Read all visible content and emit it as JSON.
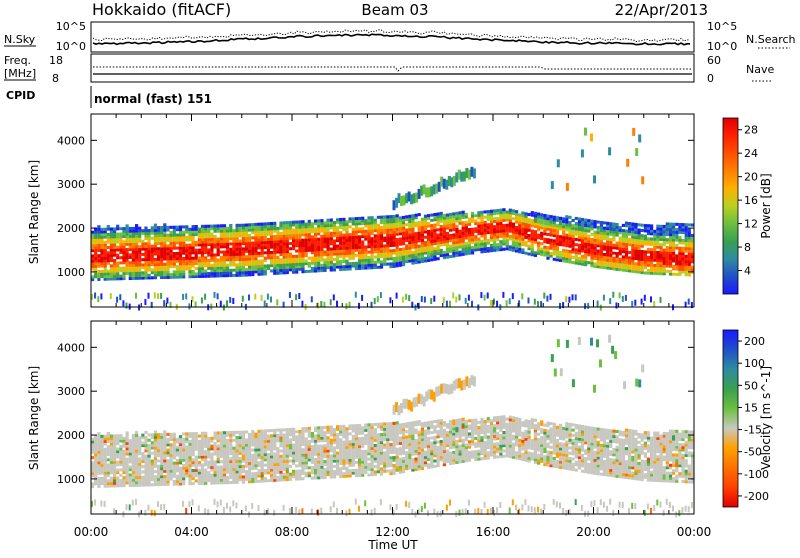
{
  "header": {
    "station": "Hokkaido (fitACF)",
    "beam": "Beam 03",
    "date": "22/Apr/2013"
  },
  "top_panels": {
    "nsky_label": "N.Sky",
    "nsearch_label": "N.Search",
    "noise_ticks": [
      "10^5",
      "10^0"
    ],
    "freq_label_line1": "Freq.",
    "freq_label_line2": "[MHz]",
    "freq_ticks": [
      "18",
      "8"
    ],
    "nave_label": "Nave",
    "nave_ticks": [
      "60",
      "0"
    ],
    "cpid_label": "CPID",
    "cpid_text": "normal (fast) 151"
  },
  "colors": {
    "power_scale": [
      "#1a1aff",
      "#2050c8",
      "#2e8ca0",
      "#3aa050",
      "#6cc040",
      "#b8d020",
      "#ffb000",
      "#ff8000",
      "#ff5000",
      "#ff2000",
      "#e00000"
    ],
    "velocity_scale": [
      "#1a1aff",
      "#2050c8",
      "#2e8ca0",
      "#3aa050",
      "#6cc040",
      "#c8c8c0",
      "#ffa000",
      "#ff7000",
      "#ff4000",
      "#e00000"
    ]
  },
  "chart_data": [
    {
      "type": "heatmap",
      "title": "Power",
      "xlabel": "Time UT",
      "ylabel": "Slant Range [km]",
      "x_ticks": [
        "00:00",
        "04:00",
        "08:00",
        "12:00",
        "16:00",
        "20:00",
        "00:00"
      ],
      "xlim_hours": [
        0,
        24
      ],
      "ylim": [
        200,
        4600
      ],
      "y_ticks": [
        1000,
        2000,
        3000,
        4000
      ],
      "colorbar": {
        "label": "Power [dB]",
        "ticks": [
          4,
          8,
          12,
          16,
          20,
          24,
          28
        ],
        "range": [
          0,
          30
        ]
      },
      "echo_band": [
        {
          "t": 0,
          "low": 800,
          "center": 1350,
          "high": 2000
        },
        {
          "t": 3,
          "low": 850,
          "center": 1400,
          "high": 2050
        },
        {
          "t": 6,
          "low": 900,
          "center": 1500,
          "high": 2100
        },
        {
          "t": 9,
          "low": 1000,
          "center": 1600,
          "high": 2200
        },
        {
          "t": 12,
          "low": 1100,
          "center": 1700,
          "high": 2250
        },
        {
          "t": 15,
          "low": 1400,
          "center": 1900,
          "high": 2350
        },
        {
          "t": 16.5,
          "low": 1500,
          "center": 2000,
          "high": 2400
        },
        {
          "t": 18,
          "low": 1300,
          "center": 1750,
          "high": 2300
        },
        {
          "t": 20,
          "low": 1100,
          "center": 1500,
          "high": 2150
        },
        {
          "t": 22,
          "low": 950,
          "center": 1350,
          "high": 2050
        },
        {
          "t": 24,
          "low": 900,
          "center": 1250,
          "high": 2100
        }
      ]
    },
    {
      "type": "heatmap",
      "title": "Velocity",
      "xlabel": "Time UT",
      "ylabel": "Slant Range [km]",
      "x_ticks": [
        "00:00",
        "04:00",
        "08:00",
        "12:00",
        "16:00",
        "20:00",
        "00:00"
      ],
      "xlim_hours": [
        0,
        24
      ],
      "ylim": [
        200,
        4600
      ],
      "y_ticks": [
        1000,
        2000,
        3000,
        4000
      ],
      "colorbar": {
        "label": "Velocity [m s^-1]",
        "ticks": [
          200,
          100,
          50,
          15,
          -15,
          -50,
          -100,
          -200
        ]
      }
    }
  ]
}
